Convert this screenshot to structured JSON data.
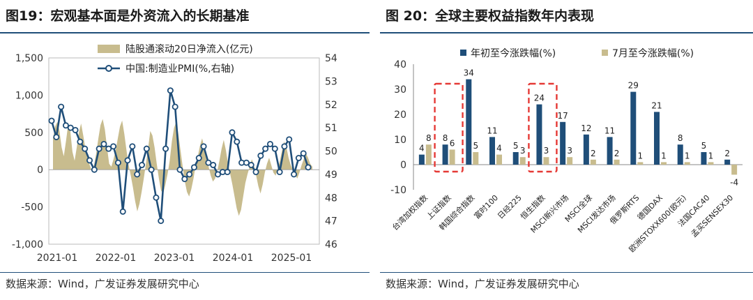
{
  "left_panel": {
    "title": "图19：宏观基本面是外资流入的长期基准",
    "source": "数据来源：Wind，广发证券发展研究中心",
    "chart_data": {
      "type": "combo-area-line",
      "x_tick_labels": [
        "2021-01",
        "2022-01",
        "2023-01",
        "2024-01",
        "2025-01"
      ],
      "y_left_ticks": [
        "1,500",
        "1,000",
        "500",
        "0",
        "-500",
        "-1,000"
      ],
      "y_left_range": [
        -1000,
        1500
      ],
      "y_right_ticks": [
        "54",
        "53",
        "52",
        "51",
        "50",
        "49",
        "48",
        "47",
        "46"
      ],
      "y_right_range": [
        46,
        54
      ],
      "series": [
        {
          "name": "陆股通滚动20日净流入(亿元)",
          "axis": "left",
          "kind": "area",
          "color": "#c8bc8e",
          "values": [
            420,
            580,
            640,
            520,
            300,
            180,
            380,
            600,
            520,
            240,
            120,
            300,
            500,
            620,
            460,
            280,
            160,
            60,
            -20,
            60,
            220,
            420,
            600,
            680,
            540,
            300,
            80,
            40,
            140,
            260,
            420,
            580,
            660,
            480,
            260,
            60,
            -80,
            -240,
            -420,
            -560,
            -460,
            -300,
            -120,
            80,
            280,
            520,
            460,
            300,
            80,
            -120,
            -280,
            -320,
            -200,
            -60,
            120,
            380,
            560,
            640,
            480,
            260,
            40,
            -160,
            -300,
            -360,
            -260,
            -120,
            60,
            180,
            320,
            420,
            300,
            140,
            40,
            -80,
            -160,
            -120,
            -20,
            120,
            280,
            400,
            260,
            80,
            -60,
            -200,
            -360,
            -520,
            -620,
            -540,
            -360,
            -180,
            -60,
            40,
            140,
            60,
            -80,
            -220,
            -320,
            -200,
            -40,
            80,
            160,
            60,
            -40,
            -80,
            20,
            120,
            260,
            380,
            300,
            160,
            60,
            0,
            -60,
            -120,
            -40,
            60,
            140,
            220,
            160,
            80,
            40
          ]
        },
        {
          "name": "中国:制造业PMI(%,右轴)",
          "axis": "right",
          "kind": "line",
          "color": "#1f4e79",
          "marker": "circle",
          "values": [
            51.3,
            50.6,
            51.9,
            51.1,
            51.0,
            50.9,
            50.4,
            50.1,
            49.6,
            49.2,
            50.1,
            50.3,
            50.1,
            50.2,
            49.5,
            47.4,
            49.6,
            50.2,
            49.0,
            49.4,
            50.1,
            49.2,
            48.0,
            47.0,
            50.1,
            52.6,
            51.9,
            49.2,
            48.8,
            49.0,
            49.3,
            49.7,
            50.2,
            49.5,
            49.4,
            49.0,
            49.1,
            49.1,
            50.8,
            50.4,
            49.5,
            49.5,
            49.4,
            49.1,
            49.8,
            50.1,
            50.3,
            50.1,
            49.1,
            50.2,
            50.5,
            49.0,
            49.7,
            49.9,
            49.3
          ]
        }
      ]
    }
  },
  "right_panel": {
    "title": "图 20：全球主要权益指数年内表现",
    "source": "数据来源：Wind，广发证券发展研究中心",
    "chart_data": {
      "type": "bar",
      "categories": [
        "台湾加权指数",
        "上证指数",
        "韩国综合指数",
        "富时100",
        "日经225",
        "恒生指数",
        "MSCI新兴市场",
        "MSCI全球",
        "MSCI发达市场",
        "俄罗斯RTS",
        "德国DAX",
        "欧洲STOXX600(欧元)",
        "法国CAC40",
        "孟买SENSEX30"
      ],
      "series": [
        {
          "name": "年初至今涨跌幅(%)",
          "color": "#1f4e79",
          "values": [
            4,
            8,
            34,
            11,
            5,
            24,
            17,
            12,
            11,
            29,
            21,
            8,
            5,
            2
          ]
        },
        {
          "name": "7月至今涨跌幅(%)",
          "color": "#c8bc8e",
          "values": [
            8,
            6,
            5,
            4,
            3,
            3,
            3,
            2,
            2,
            1,
            1,
            1,
            1,
            -4
          ]
        }
      ],
      "y_ticks": [
        "40",
        "30",
        "20",
        "10",
        "0",
        "-10"
      ],
      "ylim": [
        -10,
        40
      ],
      "legend_position": "top",
      "highlighted_categories": [
        1,
        5
      ],
      "highlight_color": "#e53935"
    }
  }
}
